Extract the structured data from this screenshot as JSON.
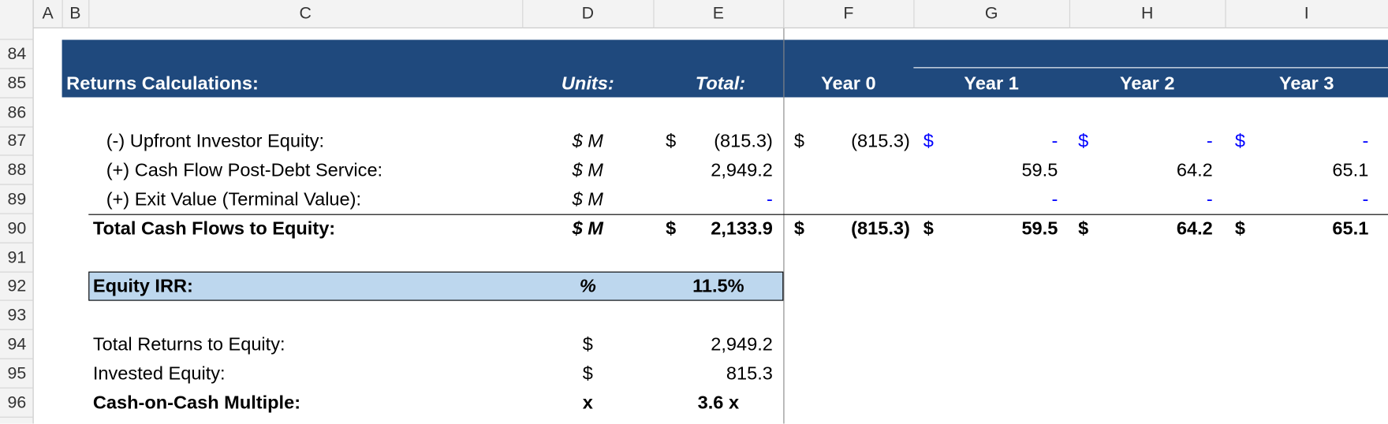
{
  "column_headers": [
    "A",
    "B",
    "C",
    "D",
    "E",
    "F",
    "G",
    "H",
    "I"
  ],
  "row_numbers": [
    84,
    85,
    86,
    87,
    88,
    89,
    90,
    91,
    92,
    93,
    94,
    95,
    96
  ],
  "header": {
    "title": "Returns Calculations:",
    "units": "Units:",
    "total": "Total:",
    "years": [
      "Year 0",
      "Year 1",
      "Year 2",
      "Year 3"
    ]
  },
  "rows": [
    null,
    null,
    null,
    {
      "label": "(-) Upfront Investor Equity:",
      "indent": true,
      "bold": false,
      "units": "$ M",
      "total_currency": "$",
      "total": "(815.3)",
      "years": [
        {
          "currency": "$",
          "value": "(815.3)"
        },
        {
          "currency": "$",
          "value": "-",
          "color": "#0000ff"
        },
        {
          "currency": "$",
          "value": "-",
          "color": "#0000ff"
        },
        {
          "currency": "$",
          "value": "-",
          "color": "#0000ff"
        }
      ]
    },
    {
      "label": "(+) Cash Flow Post-Debt Service:",
      "indent": true,
      "bold": false,
      "units": "$ M",
      "total": "2,949.2",
      "years": [
        null,
        {
          "value": "59.5"
        },
        {
          "value": "64.2"
        },
        {
          "value": "65.1"
        }
      ]
    },
    {
      "label": "(+) Exit Value (Terminal Value):",
      "indent": true,
      "bold": false,
      "units": "$ M",
      "total": "-",
      "total_color": "#0000ff",
      "years": [
        null,
        {
          "value": "-",
          "color": "#0000ff"
        },
        {
          "value": "-",
          "color": "#0000ff"
        },
        {
          "value": "-",
          "color": "#0000ff"
        }
      ]
    },
    {
      "label": "Total Cash Flows to Equity:",
      "indent": false,
      "bold": true,
      "top_border": true,
      "units": "$ M",
      "total_currency": "$",
      "total": "2,133.9",
      "years": [
        {
          "currency": "$",
          "value": "(815.3)"
        },
        {
          "currency": "$",
          "value": "59.5"
        },
        {
          "currency": "$",
          "value": "64.2"
        },
        {
          "currency": "$",
          "value": "65.1"
        }
      ]
    },
    null,
    {
      "label": "Equity IRR:",
      "indent": false,
      "bold": true,
      "highlight": "#bdd7ee",
      "units": "%",
      "total": "11.5%",
      "total_center": true
    },
    null,
    {
      "label": "Total Returns to Equity:",
      "indent": false,
      "bold": false,
      "units": "$",
      "units_upright": true,
      "total": "2,949.2"
    },
    {
      "label": "Invested Equity:",
      "indent": false,
      "bold": false,
      "units": "$",
      "units_upright": true,
      "total": "815.3"
    },
    {
      "label": "Cash-on-Cash Multiple:",
      "indent": false,
      "bold": true,
      "units": "x",
      "units_upright": true,
      "total": "3.6 x",
      "total_center": true
    }
  ]
}
